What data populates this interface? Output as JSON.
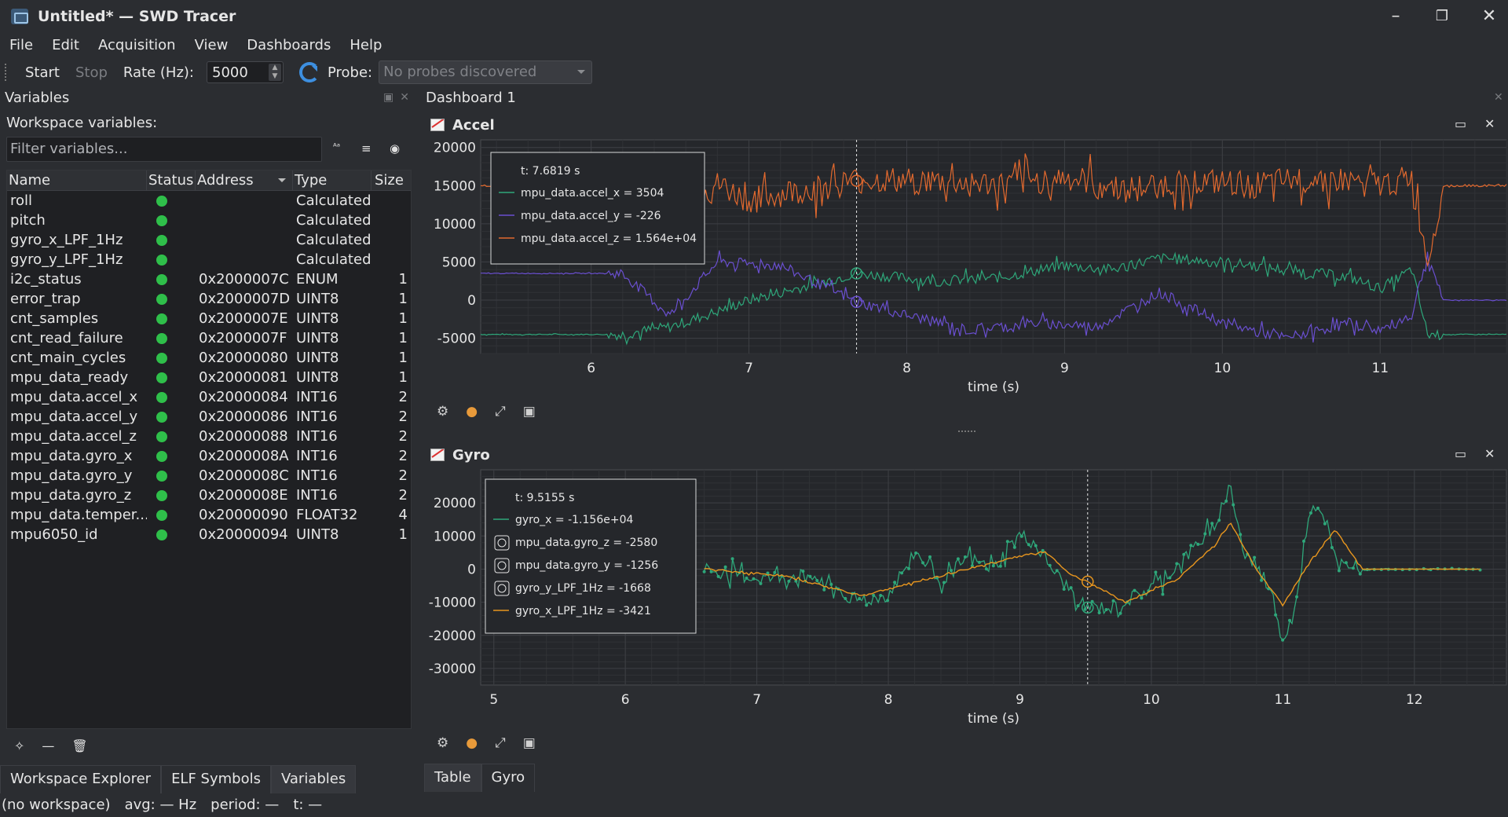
{
  "window": {
    "title": "Untitled* — SWD Tracer"
  },
  "menu": [
    "File",
    "Edit",
    "Acquisition",
    "View",
    "Dashboards",
    "Help"
  ],
  "toolbar": {
    "start": "Start",
    "stop": "Stop",
    "rate_label": "Rate (Hz):",
    "rate_value": "5000",
    "probe_label": "Probe:",
    "probe_value": "No probes discovered"
  },
  "variables_panel": {
    "title": "Variables",
    "workspace_label": "Workspace variables:",
    "filter_placeholder": "Filter variables...",
    "columns": [
      "Name",
      "Status",
      "Address",
      "Type",
      "Size"
    ],
    "rows": [
      {
        "name": "roll",
        "address": "",
        "type": "Calculated",
        "size": ""
      },
      {
        "name": "pitch",
        "address": "",
        "type": "Calculated",
        "size": ""
      },
      {
        "name": "gyro_x_LPF_1Hz",
        "address": "",
        "type": "Calculated",
        "size": ""
      },
      {
        "name": "gyro_y_LPF_1Hz",
        "address": "",
        "type": "Calculated",
        "size": ""
      },
      {
        "name": "i2c_status",
        "address": "0x2000007C",
        "type": "ENUM",
        "size": "1"
      },
      {
        "name": "error_trap",
        "address": "0x2000007D",
        "type": "UINT8",
        "size": "1"
      },
      {
        "name": "cnt_samples",
        "address": "0x2000007E",
        "type": "UINT8",
        "size": "1"
      },
      {
        "name": "cnt_read_failure",
        "address": "0x2000007F",
        "type": "UINT8",
        "size": "1"
      },
      {
        "name": "cnt_main_cycles",
        "address": "0x20000080",
        "type": "UINT8",
        "size": "1"
      },
      {
        "name": "mpu_data_ready",
        "address": "0x20000081",
        "type": "UINT8",
        "size": "1"
      },
      {
        "name": "mpu_data.accel_x",
        "address": "0x20000084",
        "type": "INT16",
        "size": "2"
      },
      {
        "name": "mpu_data.accel_y",
        "address": "0x20000086",
        "type": "INT16",
        "size": "2"
      },
      {
        "name": "mpu_data.accel_z",
        "address": "0x20000088",
        "type": "INT16",
        "size": "2"
      },
      {
        "name": "mpu_data.gyro_x",
        "address": "0x2000008A",
        "type": "INT16",
        "size": "2"
      },
      {
        "name": "mpu_data.gyro_y",
        "address": "0x2000008C",
        "type": "INT16",
        "size": "2"
      },
      {
        "name": "mpu_data.gyro_z",
        "address": "0x2000008E",
        "type": "INT16",
        "size": "2"
      },
      {
        "name": "mpu_data.temper...",
        "address": "0x20000090",
        "type": "FLOAT32",
        "size": "4"
      },
      {
        "name": "mpu6050_id",
        "address": "0x20000094",
        "type": "UINT8",
        "size": "1"
      }
    ],
    "tabs": [
      "Workspace Explorer",
      "ELF Symbols",
      "Variables"
    ]
  },
  "statusbar": {
    "workspace": "(no workspace)",
    "avg": "avg: — Hz",
    "period": "period: —",
    "t": "t: —"
  },
  "dashboard": {
    "title": "Dashboard 1",
    "tabs": [
      "Table",
      "Gyro"
    ]
  },
  "colors": {
    "accel_x": "#2ea77a",
    "accel_y": "#6a4fd0",
    "accel_z": "#e2692e",
    "gyro_x": "#2ea77a",
    "gyro_x_lpf": "#e8961e"
  },
  "chart_data": [
    {
      "type": "line",
      "title": "Accel",
      "xlabel": "time (s)",
      "ylabel": "",
      "xlim": [
        5.3,
        11.8
      ],
      "ylim": [
        -7000,
        21000
      ],
      "xticks": [
        6,
        7,
        8,
        9,
        10,
        11
      ],
      "yticks": [
        20000,
        15000,
        10000,
        5000,
        0,
        -5000
      ],
      "cursor": {
        "t": 7.6819,
        "label": "t: 7.6819 s"
      },
      "legend": [
        "mpu_data.accel_x = 3504",
        "mpu_data.accel_y = -226",
        "mpu_data.accel_z = 1.564e+04"
      ],
      "series": [
        {
          "name": "mpu_data.accel_x",
          "color": "#2ea77a",
          "x": [
            5.3,
            6.2,
            6.5,
            6.8,
            7.0,
            7.4,
            7.68,
            8.2,
            8.6,
            9.0,
            9.3,
            9.6,
            10.0,
            10.4,
            10.8,
            11.0,
            11.2,
            11.3,
            11.4,
            11.8
          ],
          "y": [
            -4500,
            -4500,
            -3500,
            -1500,
            0,
            2000,
            3500,
            2500,
            3000,
            4500,
            4000,
            5500,
            5000,
            4000,
            3000,
            1500,
            4000,
            -4500,
            -4500,
            -4500
          ]
        },
        {
          "name": "mpu_data.accel_y",
          "color": "#6a4fd0",
          "x": [
            5.3,
            6.2,
            6.5,
            6.8,
            7.2,
            7.68,
            8.0,
            8.4,
            8.8,
            9.2,
            9.6,
            10.0,
            10.4,
            10.8,
            11.0,
            11.2,
            11.3,
            11.4,
            11.8
          ],
          "y": [
            3500,
            3500,
            -2000,
            5000,
            4500,
            -226,
            -2000,
            -4000,
            -3000,
            -3500,
            1000,
            -3000,
            -5000,
            -3000,
            -4000,
            -2000,
            6000,
            0,
            0
          ]
        },
        {
          "name": "mpu_data.accel_z",
          "color": "#e2692e",
          "x": [
            5.3,
            6.2,
            6.6,
            7.0,
            7.68,
            8.2,
            8.6,
            9.0,
            9.4,
            9.8,
            10.2,
            10.6,
            11.0,
            11.2,
            11.3,
            11.4,
            11.8
          ],
          "y": [
            15000,
            15000,
            17000,
            13000,
            15640,
            15500,
            15000,
            16000,
            14500,
            15500,
            15000,
            16000,
            15000,
            16000,
            5000,
            15000,
            15000
          ]
        }
      ]
    },
    {
      "type": "line",
      "title": "Gyro",
      "xlabel": "time (s)",
      "ylabel": "",
      "xlim": [
        4.9,
        12.7
      ],
      "ylim": [
        -35000,
        30000
      ],
      "xticks": [
        5,
        6,
        7,
        8,
        9,
        10,
        11,
        12
      ],
      "yticks": [
        20000,
        10000,
        0,
        -10000,
        -20000,
        -30000
      ],
      "cursor": {
        "t": 9.5155,
        "label": "t: 9.5155 s"
      },
      "legend": [
        "gyro_x = -1.156e+04",
        "mpu_data.gyro_z = -2580",
        "mpu_data.gyro_y = -1256",
        "gyro_y_LPF_1Hz = -1668",
        "gyro_x_LPF_1Hz = -3421"
      ],
      "series": [
        {
          "name": "gyro_x",
          "color": "#2ea77a",
          "x": [
            6.6,
            7.0,
            7.4,
            7.8,
            8.0,
            8.2,
            8.4,
            8.6,
            8.8,
            9.0,
            9.1,
            9.3,
            9.5,
            9.7,
            9.9,
            10.1,
            10.3,
            10.5,
            10.6,
            10.7,
            10.9,
            11.0,
            11.1,
            11.2,
            11.3,
            11.4,
            11.6,
            12.0,
            12.5
          ],
          "y": [
            0,
            -3000,
            -2000,
            -10000,
            -8000,
            5000,
            -3000,
            3000,
            0,
            10000,
            8000,
            -3000,
            -11560,
            -12000,
            -8000,
            -3000,
            5000,
            15000,
            25000,
            5000,
            -5000,
            -22000,
            -10000,
            15000,
            18000,
            5000,
            0,
            0,
            0
          ]
        },
        {
          "name": "gyro_x_LPF_1Hz",
          "color": "#e8961e",
          "x": [
            6.6,
            7.2,
            7.8,
            8.2,
            8.6,
            9.0,
            9.2,
            9.4,
            9.5,
            9.8,
            10.2,
            10.5,
            10.6,
            10.8,
            11.0,
            11.2,
            11.4,
            11.6,
            12.0,
            12.5
          ],
          "y": [
            0,
            -2000,
            -8000,
            -4000,
            0,
            4000,
            5000,
            -2000,
            -3421,
            -10000,
            -3000,
            8000,
            14000,
            0,
            -11000,
            2000,
            12000,
            0,
            0,
            0
          ]
        }
      ]
    }
  ]
}
